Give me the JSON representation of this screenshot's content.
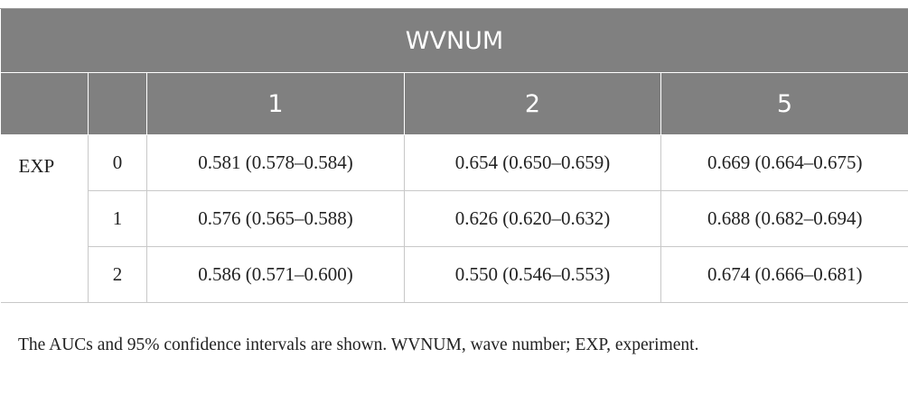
{
  "header": {
    "title": "WVNUM",
    "columns": [
      "1",
      "2",
      "5"
    ]
  },
  "table": {
    "row_group": "EXP",
    "rows": [
      {
        "label": "0",
        "cells": [
          "0.581 (0.578–0.584)",
          "0.654 (0.650–0.659)",
          "0.669 (0.664–0.675)"
        ]
      },
      {
        "label": "1",
        "cells": [
          "0.576 (0.565–0.588)",
          "0.626 (0.620–0.632)",
          "0.688 (0.682–0.694)"
        ]
      },
      {
        "label": "2",
        "cells": [
          "0.586 (0.571–0.600)",
          "0.550 (0.546–0.553)",
          "0.674 (0.666–0.681)"
        ]
      }
    ]
  },
  "note": "The AUCs and 95% confidence intervals are shown. WVNUM, wave number; EXP, experiment."
}
